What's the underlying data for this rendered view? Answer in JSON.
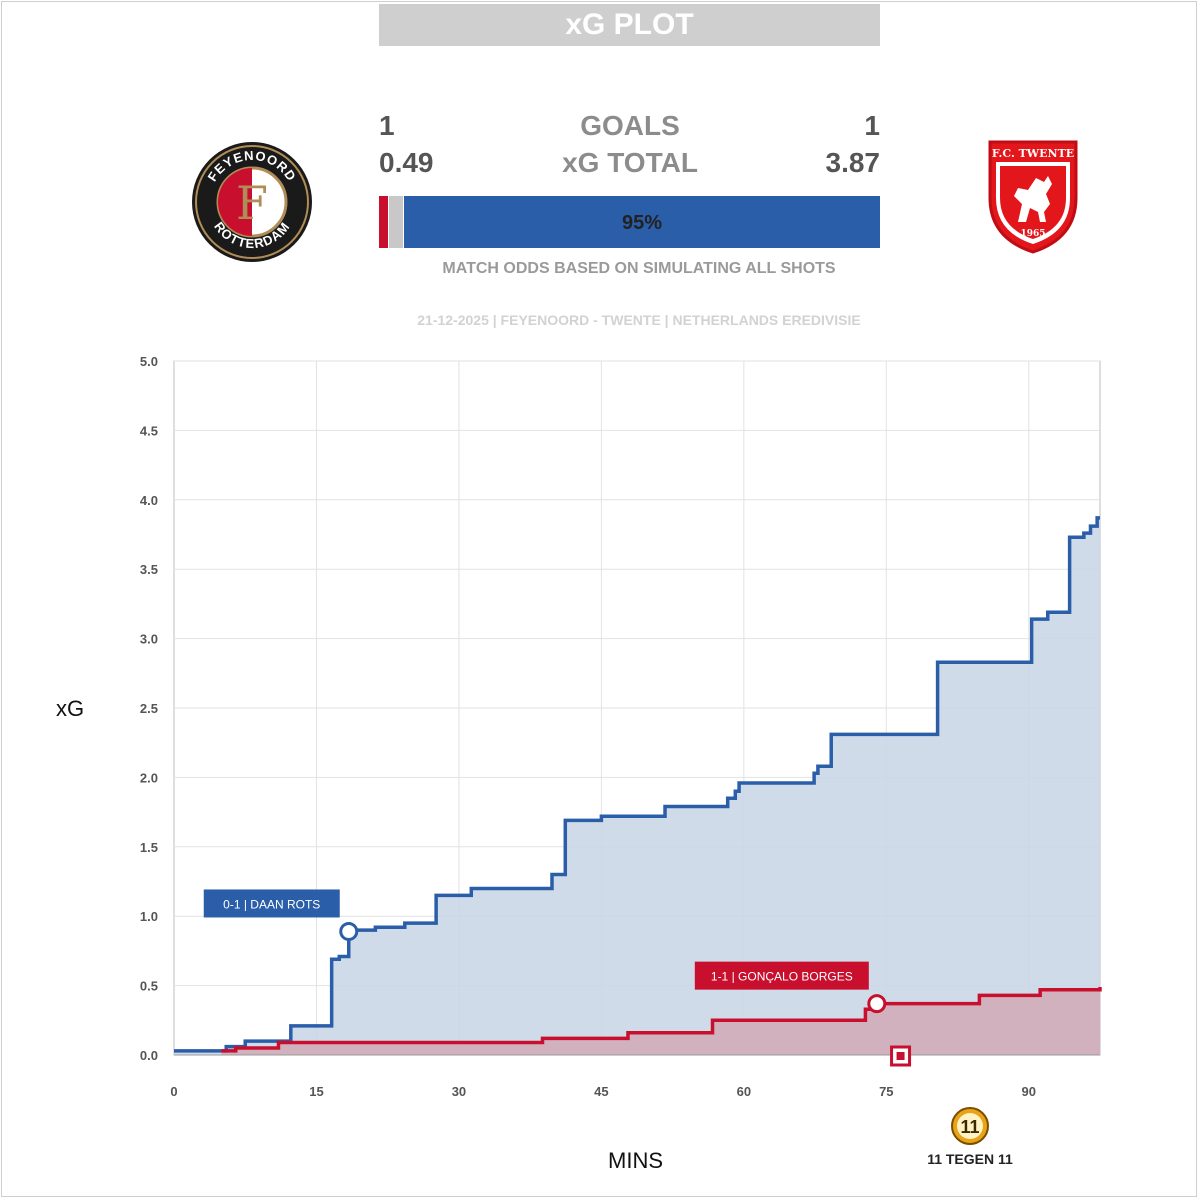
{
  "header": {
    "title": "xG PLOT"
  },
  "home": {
    "team": "FEYENOORD",
    "goals": "1",
    "xg": "0.49",
    "color": "#c8102e",
    "logo_top": "FEYENOORD",
    "logo_bottom": "ROTTERDAM",
    "logo_letter": "F"
  },
  "away": {
    "team": "TWENTE",
    "goals": "1",
    "xg": "3.87",
    "color": "#2a5ea8",
    "logo_top": "F.C. TWENTE",
    "logo_year": "1965"
  },
  "labels": {
    "goals": "GOALS",
    "xg_total": "xG TOTAL"
  },
  "odds": {
    "home_win": 2,
    "draw": 3,
    "away_win": 95,
    "away_label": "95%",
    "caption": "MATCH ODDS BASED ON SIMULATING ALL SHOTS"
  },
  "match_info": "21-12-2025 | FEYENOORD - TWENTE | NETHERLANDS EREDIVISIE",
  "brand": {
    "badge": "11",
    "name": "11 TEGEN 11"
  },
  "chart_data": {
    "type": "line",
    "step": true,
    "xlabel": "MINS",
    "ylabel": "xG",
    "xlim": [
      0,
      97.5
    ],
    "ylim": [
      0,
      5
    ],
    "x_ticks": [
      0,
      15,
      30,
      45,
      60,
      75,
      90
    ],
    "y_ticks": [
      "0.0",
      "0.5",
      "1.0",
      "1.5",
      "2.0",
      "2.5",
      "3.0",
      "3.5",
      "4.0",
      "4.5",
      "5.0"
    ],
    "grid": true,
    "series": [
      {
        "team": "TWENTE",
        "color": "#2a5ea8",
        "fill": "#c8d5e6",
        "x": [
          0,
          5.5,
          7.5,
          12.3,
          16.6,
          17.4,
          18.4,
          19.0,
          21.2,
          24.3,
          27.6,
          31.3,
          39.8,
          41.2,
          45.0,
          51.7,
          58.3,
          59.1,
          59.5,
          67.4,
          67.8,
          69.2,
          80.4,
          90.3,
          92.0,
          94.3,
          95.8,
          96.5,
          97.2,
          97.5
        ],
        "y": [
          0.03,
          0.06,
          0.1,
          0.21,
          0.69,
          0.71,
          0.89,
          0.9,
          0.92,
          0.95,
          1.15,
          1.2,
          1.3,
          1.69,
          1.72,
          1.79,
          1.85,
          1.9,
          1.96,
          2.03,
          2.08,
          2.31,
          2.83,
          3.14,
          3.19,
          3.73,
          3.76,
          3.81,
          3.87,
          3.87
        ]
      },
      {
        "team": "FEYENOORD",
        "color": "#c8102e",
        "fill": "#d2a9b6",
        "x": [
          5.0,
          6.5,
          11.0,
          38.8,
          47.8,
          56.7,
          72.8,
          74.0,
          84.8,
          91.2,
          97.5
        ],
        "y": [
          0.03,
          0.05,
          0.09,
          0.12,
          0.16,
          0.25,
          0.33,
          0.37,
          0.43,
          0.47,
          0.49
        ]
      }
    ],
    "annotations": [
      {
        "text": "0-1 | DAAN ROTS",
        "x": 18.4,
        "y": 0.89,
        "color": "#2a5ea8",
        "marker": "circle"
      },
      {
        "text": "1-1 | GONÇALO BORGES",
        "x": 74.0,
        "y": 0.37,
        "color": "#c8102e",
        "marker": "circle"
      }
    ],
    "events": [
      {
        "type": "red-card-marker",
        "x": 76.5,
        "color": "#c8102e"
      }
    ]
  }
}
